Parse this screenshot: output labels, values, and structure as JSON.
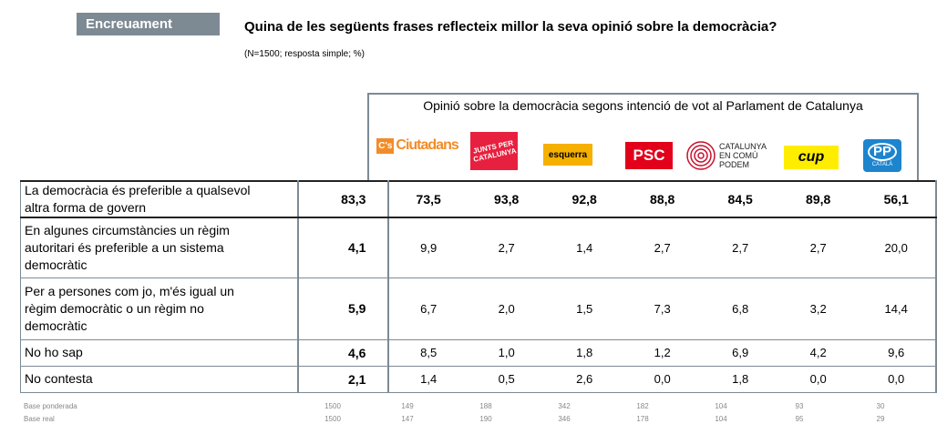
{
  "tag": "Encreuament",
  "title": "Quina de les següents frases reflecteix millor la seva opinió sobre la democràcia?",
  "subtitle": "(N=1500; resposta simple; %)",
  "header_title": "Opinió sobre la democràcia segons intenció de vot al Parlament de Catalunya",
  "parties": [
    {
      "name": "Cs",
      "logo_text": "Ciutadans",
      "logo_prefix": "C's",
      "color": "#f28c28"
    },
    {
      "name": "Junts",
      "logo_text": "JUNTS PER CATALUNYA",
      "color": "#e8203f"
    },
    {
      "name": "ERC",
      "logo_text": "esquerra",
      "color": "#f6b000"
    },
    {
      "name": "PSC",
      "logo_text": "PSC",
      "color": "#e2001a"
    },
    {
      "name": "CatComú",
      "logo_text_1": "CATALUNYA",
      "logo_text_2": "EN COMÚ",
      "logo_text_3": "PODEM",
      "color": "#c8102e"
    },
    {
      "name": "CUP",
      "logo_text": "cup",
      "color": "#ffed00"
    },
    {
      "name": "PP",
      "logo_text": "PP",
      "logo_sub": "CATALÀ",
      "color": "#1d84ce"
    }
  ],
  "rows": [
    {
      "label_1": "La democràcia és preferible a qualsevol",
      "label_2": "altra forma de govern",
      "label_3": "",
      "total": "83,3",
      "values": [
        "73,5",
        "93,8",
        "92,8",
        "88,8",
        "84,5",
        "89,8",
        "56,1"
      ]
    },
    {
      "label_1": "En algunes circumstàncies un règim",
      "label_2": "autoritari és preferible a un sistema",
      "label_3": "democràtic",
      "total": "4,1",
      "values": [
        "9,9",
        "2,7",
        "1,4",
        "2,7",
        "2,7",
        "2,7",
        "20,0"
      ]
    },
    {
      "label_1": "Per a persones com jo, m'és igual un",
      "label_2": "règim democràtic o un règim no",
      "label_3": "democràtic",
      "total": "5,9",
      "values": [
        "6,7",
        "2,0",
        "1,5",
        "7,3",
        "6,8",
        "3,2",
        "14,4"
      ]
    },
    {
      "label_1": "No ho sap",
      "label_2": "",
      "label_3": "",
      "total": "4,6",
      "values": [
        "8,5",
        "1,0",
        "1,8",
        "1,2",
        "6,9",
        "4,2",
        "9,6"
      ]
    },
    {
      "label_1": "No contesta",
      "label_2": "",
      "label_3": "",
      "total": "2,1",
      "values": [
        "1,4",
        "0,5",
        "2,6",
        "0,0",
        "1,8",
        "0,0",
        "0,0"
      ]
    }
  ],
  "base_ponderada": {
    "label": "Base ponderada",
    "total": "1500",
    "values": [
      "149",
      "188",
      "342",
      "182",
      "104",
      "93",
      "30"
    ]
  },
  "base_real": {
    "label": "Base real",
    "total": "1500",
    "values": [
      "147",
      "190",
      "346",
      "178",
      "104",
      "95",
      "29"
    ]
  }
}
